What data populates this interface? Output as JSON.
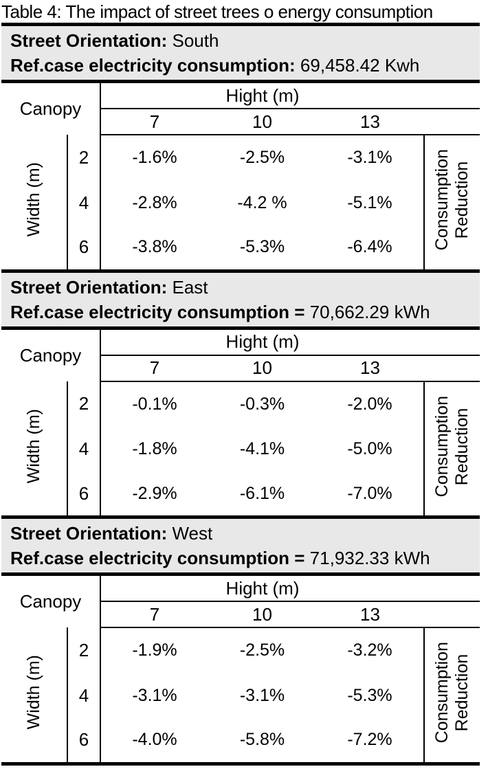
{
  "title": "Table 4: The impact of street trees o energy consumption",
  "colors": {
    "header_bg": "#e8e8e8",
    "border": "#000000",
    "text": "#000000"
  },
  "shared": {
    "canopy_label": "Canopy",
    "height_header": "Hight (m)",
    "height_values": [
      "7",
      "10",
      "13"
    ],
    "width_label": "Width (m)",
    "consumption_line1": "Consumption",
    "consumption_line2": "Reduction"
  },
  "sections": [
    {
      "orientation_label": "Street Orientation:",
      "orientation_value": "South",
      "refcase_label": "Ref.case electricity consumption:",
      "refcase_value": "69,458.42 Kwh",
      "rows": [
        {
          "width": "2",
          "values": [
            "-1.6%",
            "-2.5%",
            "-3.1%"
          ]
        },
        {
          "width": "4",
          "values": [
            "-2.8%",
            "-4.2 %",
            "-5.1%"
          ]
        },
        {
          "width": "6",
          "values": [
            "-3.8%",
            "-5.3%",
            "-6.4%"
          ]
        }
      ]
    },
    {
      "orientation_label": "Street Orientation:",
      "orientation_value": "East",
      "refcase_label": "Ref.case electricity consumption =",
      "refcase_value": "70,662.29 kWh",
      "rows": [
        {
          "width": "2",
          "values": [
            "-0.1%",
            "-0.3%",
            "-2.0%"
          ]
        },
        {
          "width": "4",
          "values": [
            "-1.8%",
            "-4.1%",
            "-5.0%"
          ]
        },
        {
          "width": "6",
          "values": [
            "-2.9%",
            "-6.1%",
            "-7.0%"
          ]
        }
      ]
    },
    {
      "orientation_label": "Street Orientation:",
      "orientation_value": "West",
      "refcase_label": "Ref.case electricity consumption =",
      "refcase_value": "71,932.33 kWh",
      "rows": [
        {
          "width": "2",
          "values": [
            "-1.9%",
            "-2.5%",
            "-3.2%"
          ]
        },
        {
          "width": "4",
          "values": [
            "-3.1%",
            "-3.1%",
            "-5.3%"
          ]
        },
        {
          "width": "6",
          "values": [
            "-4.0%",
            "-5.8%",
            "-7.2%"
          ]
        }
      ]
    }
  ]
}
